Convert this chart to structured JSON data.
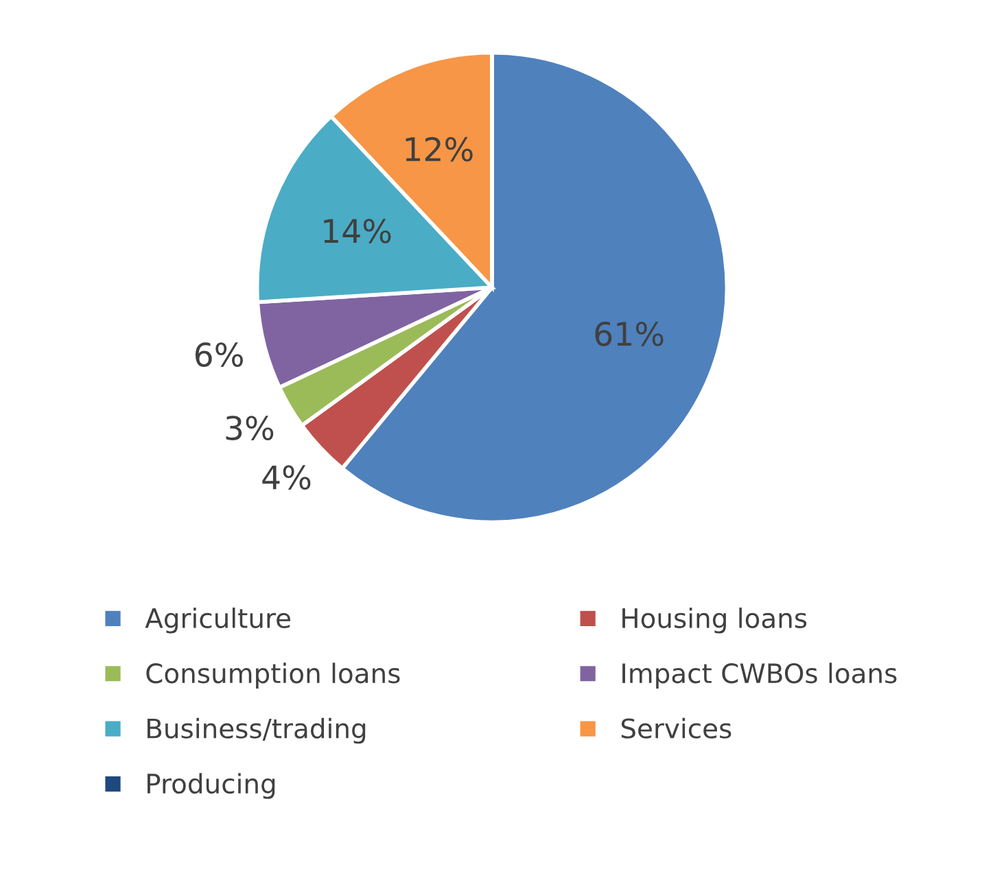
{
  "chart_data": {
    "type": "pie",
    "categories": [
      "Agriculture",
      "Housing loans",
      "Consumption loans",
      "Impact CWBOs loans",
      "Business/trading",
      "Services",
      "Producing"
    ],
    "values": [
      61,
      4,
      3,
      6,
      14,
      12,
      0
    ],
    "colors": [
      "#4f81bd",
      "#c0504d",
      "#9bbb59",
      "#8064a2",
      "#4bacc6",
      "#f79646",
      "#1f497d"
    ],
    "value_labels": [
      "61%",
      "4%",
      "3%",
      "6%",
      "14%",
      "12%",
      null
    ],
    "legend": "bottom"
  }
}
